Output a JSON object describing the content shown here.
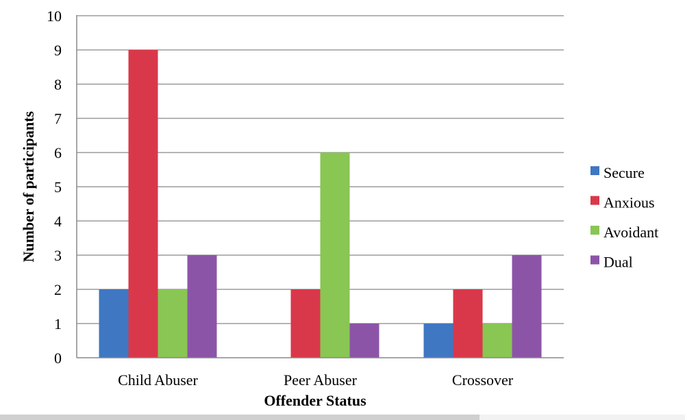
{
  "chart_data": {
    "type": "bar",
    "xlabel": "Offender Status",
    "ylabel": "Number of participants",
    "ylim": [
      0,
      10
    ],
    "yticks": [
      "0",
      "1",
      "2",
      "3",
      "4",
      "5",
      "6",
      "7",
      "8",
      "9",
      "10"
    ],
    "categories": [
      "Child Abuser",
      "Peer Abuser",
      "Crossover"
    ],
    "series": [
      {
        "name": "Secure",
        "color": "#4077c2",
        "values": [
          2,
          0,
          1
        ]
      },
      {
        "name": "Anxious",
        "color": "#d9384a",
        "values": [
          9,
          2,
          2
        ]
      },
      {
        "name": "Avoidant",
        "color": "#89c653",
        "values": [
          2,
          6,
          1
        ]
      },
      {
        "name": "Dual",
        "color": "#8c54a7",
        "values": [
          3,
          1,
          3
        ]
      }
    ],
    "grid": true,
    "legend": "right"
  }
}
